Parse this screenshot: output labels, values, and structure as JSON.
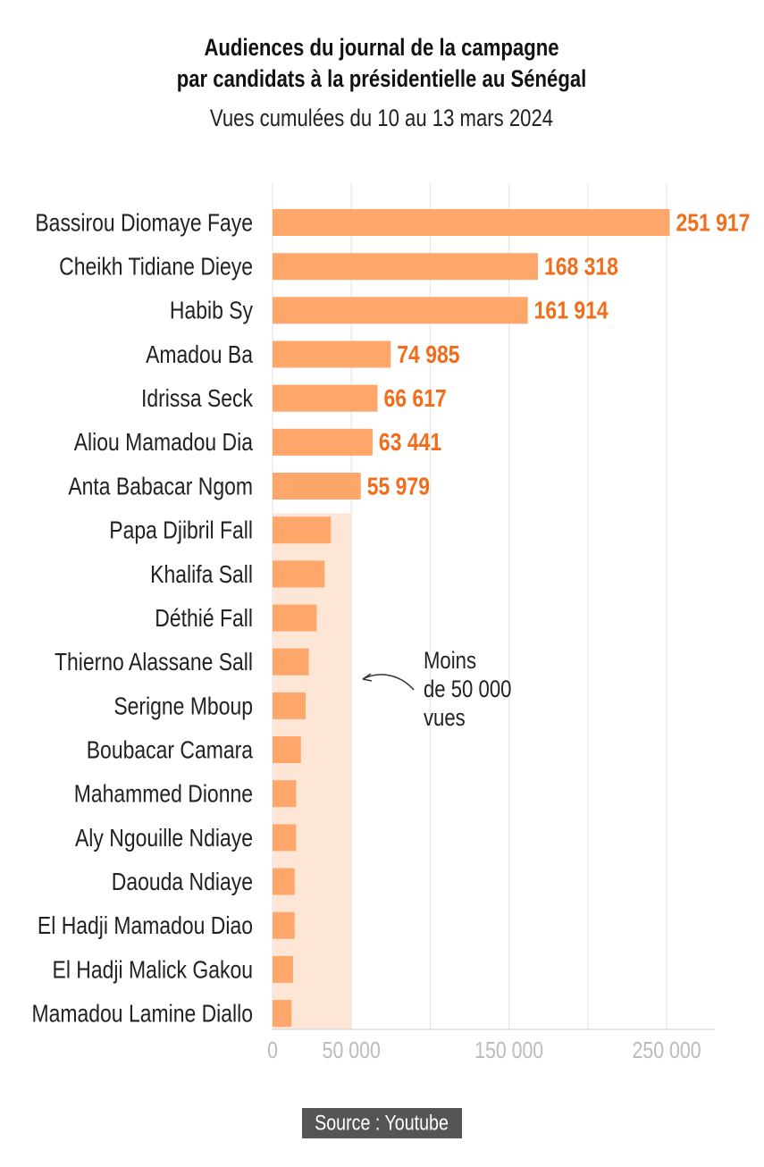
{
  "chart_data": {
    "type": "barh",
    "title": [
      "Audiences du journal de la campagne",
      "par candidats à la présidentielle au Sénégal"
    ],
    "subtitle": "Vues cumulées du 10 au 13 mars 2024",
    "categories": [
      "Bassirou Diomaye Faye",
      "Cheikh Tidiane Dieye",
      "Habib Sy",
      "Amadou Ba",
      "Idrissa Seck",
      "Aliou Mamadou Dia",
      "Anta Babacar Ngom",
      "Papa Djibril Fall",
      "Khalifa Sall",
      "Déthié Fall",
      "Thierno Alassane Sall",
      "Serigne Mboup",
      "Boubacar Camara",
      "Mahammed Dionne",
      "Aly Ngouille Ndiaye",
      "Daouda Ndiaye",
      "El Hadji Mamadou Diao",
      "El Hadji Malick Gakou",
      "Mamadou Lamine Diallo"
    ],
    "values": [
      251917,
      168318,
      161914,
      74985,
      66617,
      63441,
      55979,
      37000,
      33000,
      28000,
      23000,
      21000,
      18000,
      15000,
      15000,
      14000,
      14000,
      13000,
      12000
    ],
    "value_labels": [
      "251 917",
      "168 318",
      "161 914",
      "74 985",
      "66 617",
      "63 441",
      "55 979",
      null,
      null,
      null,
      null,
      null,
      null,
      null,
      null,
      null,
      null,
      null,
      null
    ],
    "color": "#ffa66b",
    "label_color": "#f26c1a",
    "xlim": [
      0,
      280000
    ],
    "xticks": [
      0,
      {
        "value": 50000,
        "label": "50 000"
      },
      {
        "value": 150000,
        "label": "150 000"
      },
      {
        "value": 250000,
        "label": "250 000"
      }
    ],
    "minor_xticks": [
      100000,
      200000
    ],
    "grid": true,
    "highlight_range": [
      0,
      50000
    ],
    "highlight_color": "#fee6d6",
    "annotation": [
      "Moins",
      "de 50 000",
      "vues"
    ],
    "source": "Source : Youtube"
  }
}
